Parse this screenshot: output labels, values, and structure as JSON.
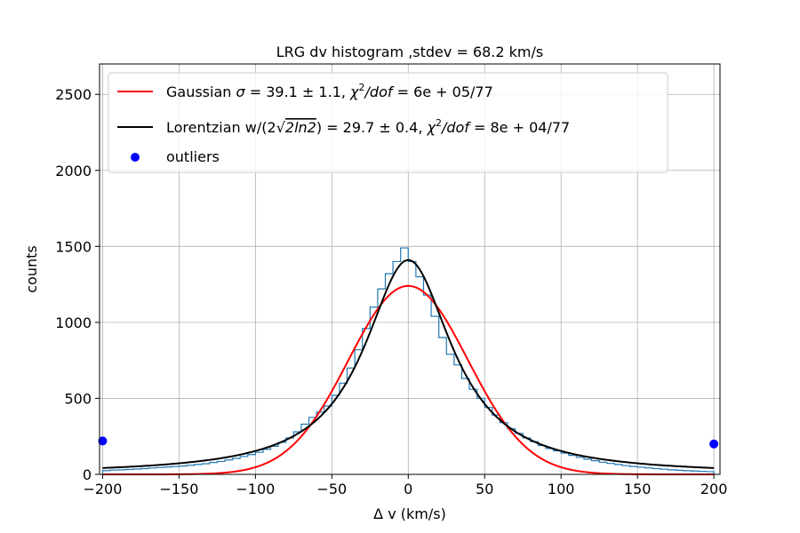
{
  "chart_data": {
    "type": "histogram",
    "title": "LRG dv histogram ,stdev = 68.2 km/s",
    "xlabel": "Δ v (km/s)",
    "ylabel": "counts",
    "xlim": [
      -202,
      204
    ],
    "ylim": [
      0,
      2700
    ],
    "x_ticks": [
      -200,
      -150,
      -100,
      -50,
      0,
      50,
      100,
      150,
      200
    ],
    "y_ticks": [
      0,
      500,
      1000,
      1500,
      2000,
      2500
    ],
    "grid": true,
    "legend_position": "top-left",
    "colors": {
      "histogram": "#1f77b4",
      "gaussian": "#ff0000",
      "lorentzian": "#000000",
      "outliers": "#0000ff"
    },
    "histogram": {
      "name": "",
      "bin_edges": [
        -200,
        -195,
        -190,
        -185,
        -180,
        -175,
        -170,
        -165,
        -160,
        -155,
        -150,
        -145,
        -140,
        -135,
        -130,
        -125,
        -120,
        -115,
        -110,
        -105,
        -100,
        -95,
        -90,
        -85,
        -80,
        -75,
        -70,
        -65,
        -60,
        -55,
        -50,
        -45,
        -40,
        -35,
        -30,
        -25,
        -20,
        -15,
        -10,
        -5,
        0,
        5,
        10,
        15,
        20,
        25,
        30,
        35,
        40,
        45,
        50,
        55,
        60,
        65,
        70,
        75,
        80,
        85,
        90,
        95,
        100,
        105,
        110,
        115,
        120,
        125,
        130,
        135,
        140,
        145,
        150,
        155,
        160,
        165,
        170,
        175,
        180,
        185,
        190,
        195,
        200
      ],
      "counts": [
        25,
        28,
        30,
        32,
        35,
        38,
        42,
        45,
        48,
        52,
        55,
        60,
        65,
        70,
        78,
        85,
        95,
        105,
        118,
        130,
        145,
        165,
        185,
        210,
        240,
        280,
        330,
        375,
        410,
        450,
        520,
        600,
        700,
        820,
        960,
        1100,
        1220,
        1320,
        1400,
        1490,
        1400,
        1300,
        1180,
        1040,
        900,
        790,
        720,
        630,
        560,
        500,
        440,
        390,
        340,
        300,
        270,
        240,
        215,
        190,
        170,
        155,
        140,
        125,
        112,
        100,
        90,
        80,
        72,
        65,
        58,
        52,
        47,
        42,
        38,
        34,
        30,
        27,
        24,
        22,
        20,
        18
      ]
    },
    "series": [
      {
        "name": "Gaussian $\\sigma = 39.1 \\pm 1.1, \\chi^2/dof = 6e + 05/77$",
        "type": "line",
        "color": "#ff0000",
        "model": "gaussian",
        "params": {
          "amplitude": 1240,
          "center": 0,
          "sigma": 39.1
        }
      },
      {
        "name": "Lorentzian w/(2$\\sqrt{2ln2}$) = 29.7 $\\pm$ 0.4, $\\chi^2/dof = 8e + 04/77$",
        "type": "line",
        "color": "#000000",
        "model": "lorentzian",
        "params": {
          "amplitude": 1410,
          "center": 0,
          "hwhm": 35.0
        }
      },
      {
        "name": "outliers",
        "type": "scatter",
        "color": "#0000ff",
        "points": [
          [
            -200,
            220
          ],
          [
            200,
            200
          ]
        ]
      }
    ]
  },
  "legend": {
    "gaussian_prefix": "Gaussian ",
    "gaussian_sigma": "σ",
    "gaussian_mid": " = 39.1 ± 1.1, ",
    "gaussian_chi": "χ",
    "gaussian_sup": "2",
    "gaussian_dof": "/dof",
    "gaussian_tail": " = 6e + 05/77",
    "lorentz_prefix": "Lorentzian w/(2",
    "lorentz_sqrt_sym": "√",
    "lorentz_sqrt_arg": "2ln2",
    "lorentz_mid": ") = 29.7 ± 0.4, ",
    "lorentz_chi": "χ",
    "lorentz_sup": "2",
    "lorentz_dof": "/dof",
    "lorentz_tail": " = 8e + 04/77",
    "outliers_label": "outliers"
  }
}
